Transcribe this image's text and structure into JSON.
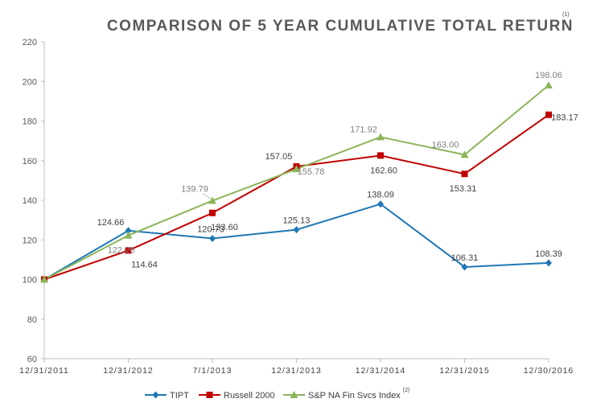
{
  "chart_data": {
    "type": "line",
    "title": "COMPARISON OF 5 YEAR CUMULATIVE TOTAL RETURN",
    "title_note": "(1)",
    "categories": [
      "12/31/2011",
      "12/31/2012",
      "7/1/2013",
      "12/31/2013",
      "12/31/2014",
      "12/31/2015",
      "12/30/2016"
    ],
    "ylim": [
      60,
      220
    ],
    "yticks": [
      60,
      80,
      100,
      120,
      140,
      160,
      180,
      200,
      220
    ],
    "xlabel": "",
    "ylabel": "",
    "grid": false,
    "legend_position": "bottom",
    "series": [
      {
        "name": "TIPT",
        "color": "#1f77b4",
        "marker": "diamond",
        "values": [
          100,
          124.66,
          120.73,
          125.13,
          138.09,
          106.31,
          108.39
        ],
        "labels": [
          "",
          "124.66",
          "120.73",
          "125.13",
          "138.09",
          "106.31",
          "108.39"
        ]
      },
      {
        "name": "Russell 2000",
        "color": "#c00000",
        "marker": "square",
        "values": [
          100,
          114.64,
          133.6,
          157.05,
          162.6,
          153.31,
          183.17
        ],
        "labels": [
          "",
          "114.64",
          "133.60",
          "157.05",
          "162.60",
          "153.31",
          "183.17"
        ]
      },
      {
        "name": "S&P NA Fin Svcs Index",
        "name_note": "(2)",
        "color": "#8db55a",
        "marker": "triangle",
        "values": [
          100,
          122.26,
          139.79,
          155.78,
          171.92,
          163.0,
          198.06
        ],
        "labels": [
          "",
          "122.26",
          "139.79",
          "155.78",
          "171.92",
          "163.00",
          "198.06"
        ]
      }
    ]
  }
}
